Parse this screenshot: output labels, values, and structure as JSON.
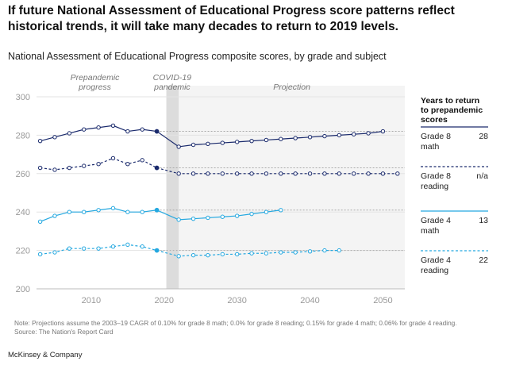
{
  "headline": "If future National Assessment of Educational Progress score patterns reflect historical trends, it will take many decades to return to 2019 levels.",
  "chart_data": {
    "type": "line",
    "title": "National Assessment of Educational Progress composite scores, by grade and subject",
    "xlim": [
      2002.5,
      2053
    ],
    "ylim": [
      200,
      300
    ],
    "y_ticks": [
      200,
      220,
      240,
      260,
      280,
      300
    ],
    "x_ticks": [
      2010,
      2020,
      2030,
      2040,
      2050
    ],
    "pandemic_band": [
      2020.3,
      2022
    ],
    "projection_start": 2022,
    "period_labels": {
      "prepandemic": "Prepandemic progress",
      "covid": "COVID-19 pandemic",
      "projection": "Projection"
    },
    "legend_title": "Years to return to prepandemic scores",
    "series": [
      {
        "name": "Grade 8 math",
        "years_to_return": "28",
        "color": "#1a2a6c",
        "dashed": false,
        "baseline": 282,
        "historical": [
          [
            2003,
            277
          ],
          [
            2005,
            279
          ],
          [
            2007,
            281
          ],
          [
            2009,
            283
          ],
          [
            2011,
            284
          ],
          [
            2013,
            285
          ],
          [
            2015,
            282
          ],
          [
            2017,
            283
          ],
          [
            2019,
            282
          ]
        ],
        "projection": [
          [
            2022,
            274
          ],
          [
            2024,
            275
          ],
          [
            2026,
            275.5
          ],
          [
            2028,
            276
          ],
          [
            2030,
            276.5
          ],
          [
            2032,
            277
          ],
          [
            2034,
            277.5
          ],
          [
            2036,
            278
          ],
          [
            2038,
            278.5
          ],
          [
            2040,
            279
          ],
          [
            2042,
            279.5
          ],
          [
            2044,
            280
          ],
          [
            2046,
            280.5
          ],
          [
            2048,
            281
          ],
          [
            2050,
            282
          ]
        ]
      },
      {
        "name": "Grade 8 reading",
        "years_to_return": "n/a",
        "color": "#1a2a6c",
        "dashed": true,
        "baseline": 263,
        "historical": [
          [
            2003,
            263
          ],
          [
            2005,
            262
          ],
          [
            2007,
            263
          ],
          [
            2009,
            264
          ],
          [
            2011,
            265
          ],
          [
            2013,
            268
          ],
          [
            2015,
            265
          ],
          [
            2017,
            267
          ],
          [
            2019,
            263
          ]
        ],
        "projection": [
          [
            2022,
            260
          ],
          [
            2024,
            260
          ],
          [
            2026,
            260
          ],
          [
            2028,
            260
          ],
          [
            2030,
            260
          ],
          [
            2032,
            260
          ],
          [
            2034,
            260
          ],
          [
            2036,
            260
          ],
          [
            2038,
            260
          ],
          [
            2040,
            260
          ],
          [
            2042,
            260
          ],
          [
            2044,
            260
          ],
          [
            2046,
            260
          ],
          [
            2048,
            260
          ],
          [
            2050,
            260
          ],
          [
            2052,
            260
          ]
        ]
      },
      {
        "name": "Grade 4 math",
        "years_to_return": "13",
        "color": "#24a8e0",
        "dashed": false,
        "baseline": 241,
        "historical": [
          [
            2003,
            235
          ],
          [
            2005,
            238
          ],
          [
            2007,
            240
          ],
          [
            2009,
            240
          ],
          [
            2011,
            241
          ],
          [
            2013,
            242
          ],
          [
            2015,
            240
          ],
          [
            2017,
            240
          ],
          [
            2019,
            241
          ]
        ],
        "projection": [
          [
            2022,
            236
          ],
          [
            2024,
            236.5
          ],
          [
            2026,
            237
          ],
          [
            2028,
            237.5
          ],
          [
            2030,
            238
          ],
          [
            2032,
            239
          ],
          [
            2034,
            240
          ],
          [
            2036,
            241
          ]
        ]
      },
      {
        "name": "Grade 4 reading",
        "years_to_return": "22",
        "color": "#24a8e0",
        "dashed": true,
        "baseline": 220,
        "historical": [
          [
            2003,
            218
          ],
          [
            2005,
            219
          ],
          [
            2007,
            221
          ],
          [
            2009,
            221
          ],
          [
            2011,
            221
          ],
          [
            2013,
            222
          ],
          [
            2015,
            223
          ],
          [
            2017,
            222
          ],
          [
            2019,
            220
          ]
        ],
        "projection": [
          [
            2022,
            217
          ],
          [
            2024,
            217.5
          ],
          [
            2026,
            217.5
          ],
          [
            2028,
            218
          ],
          [
            2030,
            218
          ],
          [
            2032,
            218.5
          ],
          [
            2034,
            218.5
          ],
          [
            2036,
            219
          ],
          [
            2038,
            219
          ],
          [
            2040,
            219.5
          ],
          [
            2042,
            220
          ],
          [
            2044,
            220
          ]
        ]
      }
    ]
  },
  "note": "Note: Projections assume the 2003–19 CAGR of 0.10% for grade 8 math; 0.0% for grade 8 reading; 0.15% for grade 4 math; 0.06% for grade 4 reading.",
  "source": "Source: The Nation's Report Card",
  "brand": "McKinsey & Company"
}
